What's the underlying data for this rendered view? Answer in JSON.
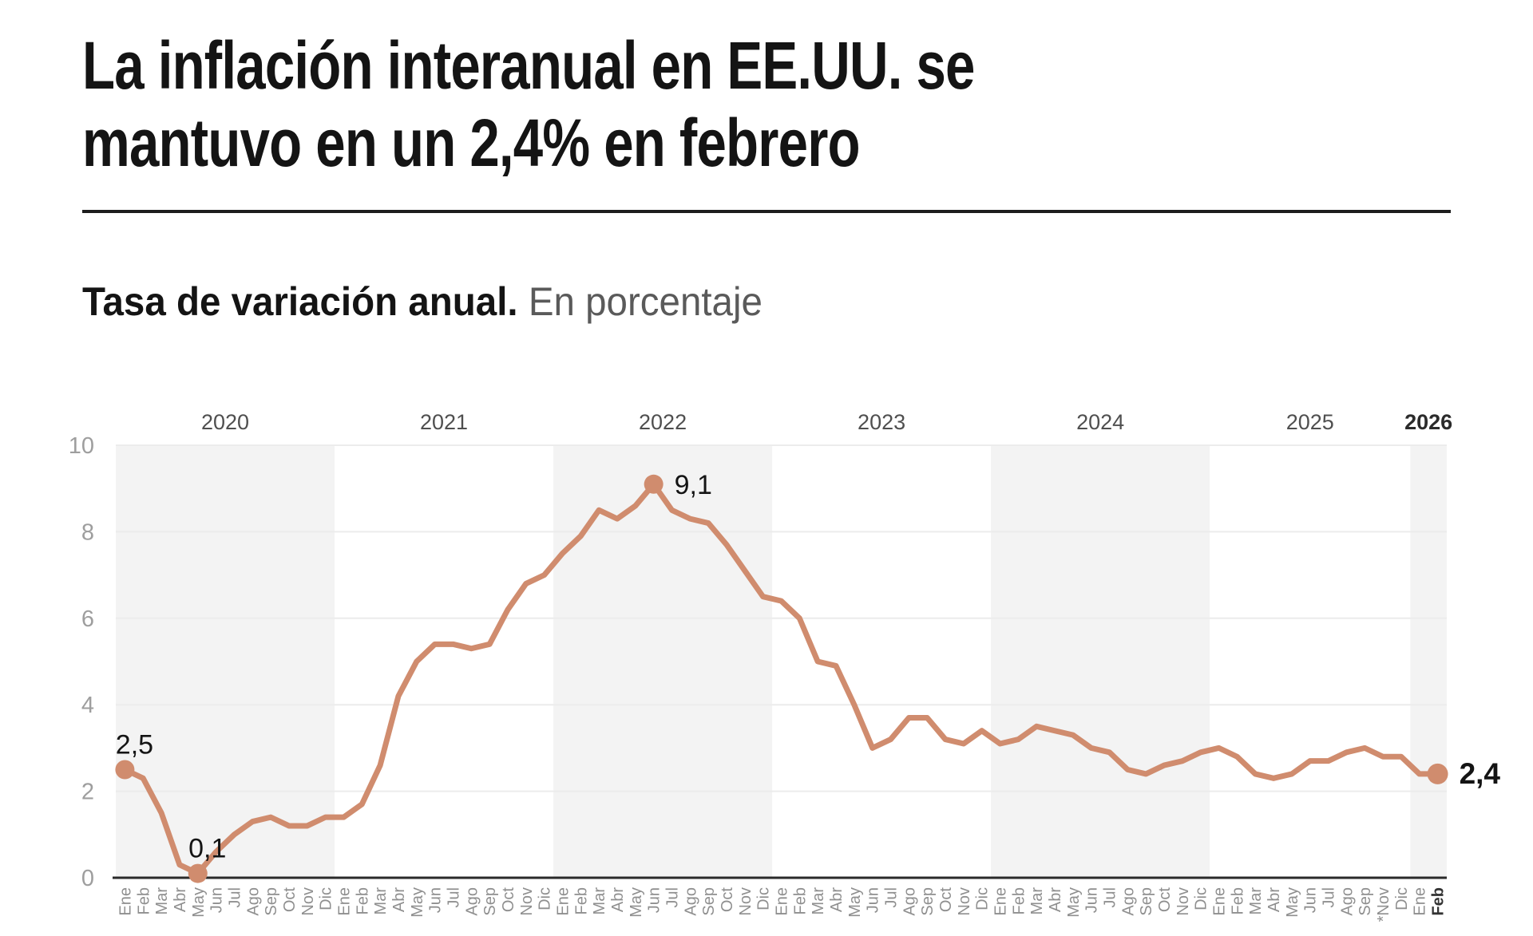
{
  "header": {
    "title_line1": "La inflación interanual en EE.UU. se",
    "title_line2": "mantuvo en un 2,4% en febrero"
  },
  "chart": {
    "title_bold": "Tasa de variación anual.",
    "title_light": "En porcentaje"
  },
  "chart_data": {
    "type": "line",
    "unit": "percent",
    "ylim": [
      0,
      10
    ],
    "yticks": [
      0,
      2,
      4,
      6,
      8,
      10
    ],
    "grid": true,
    "legend": "none",
    "line_color": "#d08c6e",
    "band_color": "#f3f3f3",
    "grid_color": "#ececec",
    "axis_color": "#2a2a2a",
    "tick_label_color": "#9e9e9e",
    "month_label_color": "#8f8f8f",
    "year_label_color": "#4f4f4f",
    "annotation_color": "#141414",
    "years": [
      {
        "label": "2020",
        "shaded": true,
        "bold": false,
        "months": [
          "Ene",
          "Feb",
          "Mar",
          "Abr",
          "May",
          "Jun",
          "Jul",
          "Ago",
          "Sep",
          "Oct",
          "Nov",
          "Dic"
        ],
        "values": [
          2.5,
          2.3,
          1.5,
          0.3,
          0.1,
          0.6,
          1.0,
          1.3,
          1.4,
          1.2,
          1.2,
          1.4
        ]
      },
      {
        "label": "2021",
        "shaded": false,
        "bold": false,
        "months": [
          "Ene",
          "Feb",
          "Mar",
          "Abr",
          "May",
          "Jun",
          "Jul",
          "Ago",
          "Sep",
          "Oct",
          "Nov",
          "Dic"
        ],
        "values": [
          1.4,
          1.7,
          2.6,
          4.2,
          5.0,
          5.4,
          5.4,
          5.3,
          5.4,
          6.2,
          6.8,
          7.0
        ]
      },
      {
        "label": "2022",
        "shaded": true,
        "bold": false,
        "months": [
          "Ene",
          "Feb",
          "Mar",
          "Abr",
          "May",
          "Jun",
          "Jul",
          "Ago",
          "Sep",
          "Oct",
          "Nov",
          "Dic"
        ],
        "values": [
          7.5,
          7.9,
          8.5,
          8.3,
          8.6,
          9.1,
          8.5,
          8.3,
          8.2,
          7.7,
          7.1,
          6.5
        ]
      },
      {
        "label": "2023",
        "shaded": false,
        "bold": false,
        "months": [
          "Ene",
          "Feb",
          "Mar",
          "Abr",
          "May",
          "Jun",
          "Jul",
          "Ago",
          "Sep",
          "Oct",
          "Nov",
          "Dic"
        ],
        "values": [
          6.4,
          6.0,
          5.0,
          4.9,
          4.0,
          3.0,
          3.2,
          3.7,
          3.7,
          3.2,
          3.1,
          3.4
        ]
      },
      {
        "label": "2024",
        "shaded": true,
        "bold": false,
        "months": [
          "Ene",
          "Feb",
          "Mar",
          "Abr",
          "May",
          "Jun",
          "Jul",
          "Ago",
          "Sep",
          "Oct",
          "Nov",
          "Dic"
        ],
        "values": [
          3.1,
          3.2,
          3.5,
          3.4,
          3.3,
          3.0,
          2.9,
          2.5,
          2.4,
          2.6,
          2.7,
          2.9
        ]
      },
      {
        "label": "2025",
        "shaded": false,
        "bold": false,
        "months": [
          "Ene",
          "Feb",
          "Mar",
          "Abr",
          "May",
          "Jun",
          "Jul",
          "Ago",
          "Sep",
          "*Nov",
          "Dic"
        ],
        "values": [
          3.0,
          2.8,
          2.4,
          2.3,
          2.4,
          2.7,
          2.7,
          2.9,
          3.0,
          2.8,
          2.8
        ]
      },
      {
        "label": "2026",
        "shaded": true,
        "bold": true,
        "months": [
          "Ene",
          "Feb"
        ],
        "values": [
          2.4,
          2.4
        ]
      }
    ],
    "annotations": [
      {
        "year": "2020",
        "month": "Ene",
        "label": "2,5",
        "placement": "above",
        "bold": false
      },
      {
        "year": "2020",
        "month": "May",
        "label": "0,1",
        "placement": "above",
        "bold": false
      },
      {
        "year": "2022",
        "month": "Jun",
        "label": "9,1",
        "placement": "right",
        "bold": false
      },
      {
        "year": "2026",
        "month": "Feb",
        "label": "2,4",
        "placement": "right",
        "bold": true
      }
    ]
  }
}
